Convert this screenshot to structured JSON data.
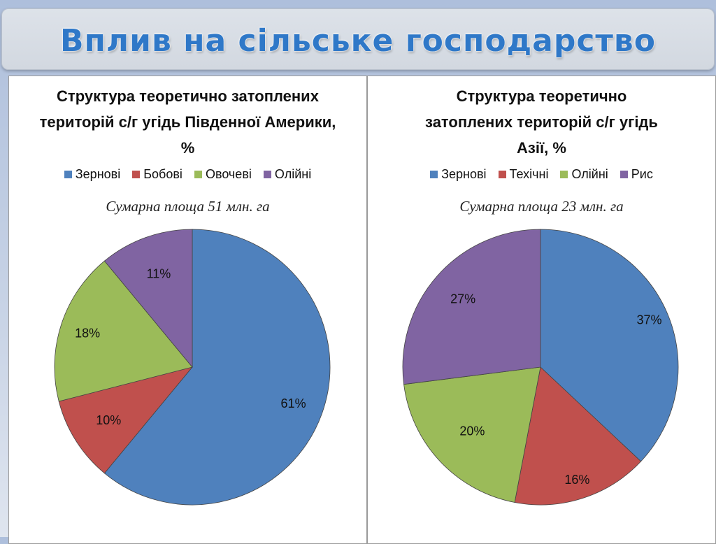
{
  "header": {
    "title": "Вплив на сільське господарство"
  },
  "chart_data": [
    {
      "type": "pie",
      "title": "Структура теоретично затоплених територій с/г угідь Південної Америки, %",
      "subtitle": "Сумарна площа 51 млн. га",
      "legend_position": "top",
      "categories": [
        "Зернові",
        "Бобові",
        "Овочеві",
        "Олійні"
      ],
      "values": [
        61,
        10,
        18,
        11
      ],
      "labels": [
        "61%",
        "10%",
        "18%",
        "11%"
      ],
      "colors": [
        "#4f81bd",
        "#c0504d",
        "#9bbb59",
        "#8064a2"
      ]
    },
    {
      "type": "pie",
      "title": "Структура теоретично затоплених територій с/г угідь Азії, %",
      "subtitle": "Сумарна площа 23 млн. га",
      "legend_position": "top",
      "categories": [
        "Зернові",
        "Техічні",
        "Олійні",
        "Рис"
      ],
      "values": [
        37,
        16,
        20,
        27
      ],
      "labels": [
        "37%",
        "16%",
        "20%",
        "27%"
      ],
      "colors": [
        "#4f81bd",
        "#c0504d",
        "#9bbb59",
        "#8064a2"
      ]
    }
  ]
}
